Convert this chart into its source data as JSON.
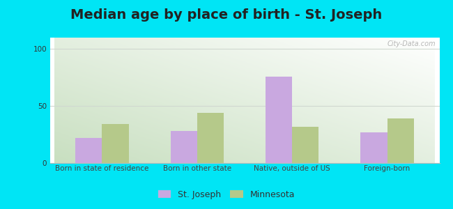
{
  "title": "Median age by place of birth - St. Joseph",
  "categories": [
    "Born in state of residence",
    "Born in other state",
    "Native, outside of US",
    "Foreign-born"
  ],
  "st_joseph": [
    22,
    28,
    76,
    27
  ],
  "minnesota": [
    34,
    44,
    32,
    39
  ],
  "st_joseph_color": "#c9a8e0",
  "minnesota_color": "#b5c98a",
  "background_outer": "#00e5f5",
  "ylim": [
    0,
    110
  ],
  "yticks": [
    0,
    50,
    100
  ],
  "bar_width": 0.28,
  "legend_labels": [
    "St. Joseph",
    "Minnesota"
  ],
  "title_fontsize": 14,
  "tick_fontsize": 7.5,
  "legend_fontsize": 9,
  "watermark": "City-Data.com",
  "grad_colors": [
    "#c8dfc0",
    "#f0f8f0",
    "#ffffff"
  ],
  "grid_color": "#d0d8d0"
}
